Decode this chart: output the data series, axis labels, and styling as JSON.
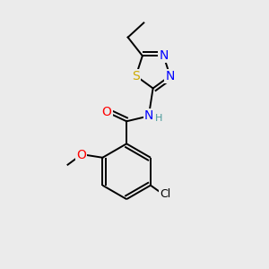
{
  "background_color": "#ebebeb",
  "bond_color": "#000000",
  "atoms": {
    "S": {
      "color": "#ccaa00",
      "fontsize": 10
    },
    "N": {
      "color": "#0000ff",
      "fontsize": 10
    },
    "O": {
      "color": "#ff0000",
      "fontsize": 10
    },
    "Cl": {
      "color": "#000000",
      "fontsize": 9
    },
    "NH": {
      "color": "#0000ff",
      "fontsize": 9
    },
    "H": {
      "color": "#4a9a9a",
      "fontsize": 8
    }
  },
  "figsize": [
    3.0,
    3.0
  ],
  "dpi": 100
}
